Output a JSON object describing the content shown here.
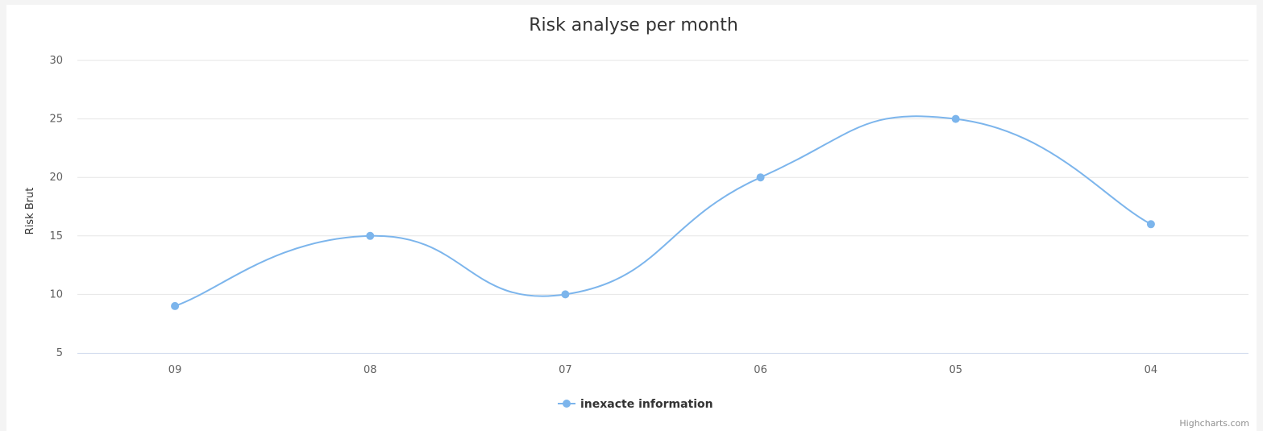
{
  "chart_data": {
    "type": "line",
    "title": "Risk analyse per month",
    "ylabel": "Risk Brut",
    "xlabel": "",
    "categories": [
      "09",
      "08",
      "07",
      "06",
      "05",
      "04"
    ],
    "series": [
      {
        "name": "inexacte information",
        "values": [
          9,
          15,
          10,
          20,
          25,
          16
        ],
        "color": "#7cb5ec"
      }
    ],
    "yticks": [
      5,
      10,
      15,
      20,
      25,
      30
    ],
    "ylim": [
      5,
      30
    ],
    "grid": true,
    "legend": "bottom-center",
    "smooth": true
  },
  "credits": "Highcharts.com"
}
